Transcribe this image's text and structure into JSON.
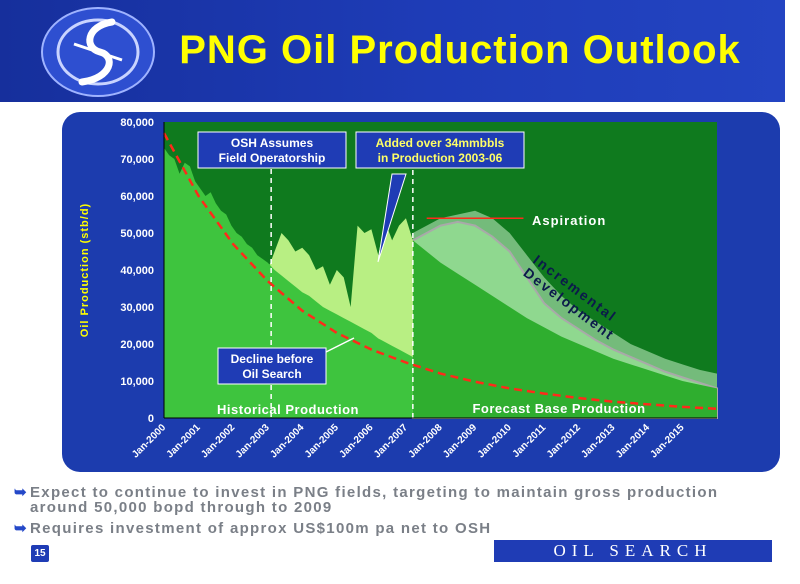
{
  "slide": {
    "title": "PNG Oil Production Outlook",
    "page_number": "15",
    "brand": "OIL SEARCH LIMITED",
    "bullets": [
      "Expect to continue to invest in PNG fields, targeting to maintain gross production around 50,000 bopd through to 2009",
      "Requires investment of approx US$100m pa net to OSH"
    ]
  },
  "colors": {
    "header_blue": "#1e3cb7",
    "title_yellow": "#ffff00",
    "panel_blue": "#1c3cae",
    "plot_green": "#0f7a1e",
    "historical_fill": "#3ec43e",
    "added_fill": "#b8ef83",
    "forecast_fill": "#2fae2f",
    "incremental_fill": "#8fd88f",
    "aspiration_fill": "#c8f0c8",
    "decline_line": "#ff2a1a"
  },
  "chart_data": {
    "type": "area",
    "ylabel": "Oil Production (stb/d)",
    "xlabel": "",
    "ylim": [
      0,
      80000
    ],
    "xlim": [
      2000,
      2016
    ],
    "yticks": [
      "0",
      "10,000",
      "20,000",
      "30,000",
      "40,000",
      "50,000",
      "60,000",
      "70,000",
      "80,000"
    ],
    "xticks": [
      {
        "x": 2000,
        "label": "Jan-2000"
      },
      {
        "x": 2001,
        "label": "Jan-2001"
      },
      {
        "x": 2002,
        "label": "Jan-2002"
      },
      {
        "x": 2003,
        "label": "Jan-2003"
      },
      {
        "x": 2004,
        "label": "Jan-2004"
      },
      {
        "x": 2005,
        "label": "Jan-2005"
      },
      {
        "x": 2006,
        "label": "Jan-2006"
      },
      {
        "x": 2007,
        "label": "Jan-2007"
      },
      {
        "x": 2008,
        "label": "Jan-2008"
      },
      {
        "x": 2009,
        "label": "Jan-2009"
      },
      {
        "x": 2010,
        "label": "Jan-2010"
      },
      {
        "x": 2011,
        "label": "Jan-2011"
      },
      {
        "x": 2012,
        "label": "Jan-2012"
      },
      {
        "x": 2013,
        "label": "Jan-2013"
      },
      {
        "x": 2014,
        "label": "Jan-2014"
      },
      {
        "x": 2015,
        "label": "Jan-2015"
      }
    ],
    "series": [
      {
        "name": "Historical Production",
        "x": [
          2000.0,
          2000.15,
          2000.3,
          2000.45,
          2000.6,
          2000.75,
          2000.9,
          2001.05,
          2001.2,
          2001.35,
          2001.5,
          2001.65,
          2001.8,
          2001.95,
          2002.1,
          2002.25,
          2002.4,
          2002.55,
          2002.7,
          2002.85,
          2003.0,
          2003.2,
          2003.4,
          2003.6,
          2003.8,
          2004.0,
          2004.2,
          2004.4,
          2004.6,
          2004.8,
          2005.0,
          2005.2,
          2005.4,
          2005.6,
          2005.8,
          2006.0,
          2006.2,
          2006.4,
          2006.6,
          2006.8,
          2007.0,
          2007.2
        ],
        "y": [
          73000,
          71000,
          70000,
          66000,
          69000,
          68000,
          64000,
          62000,
          60000,
          61000,
          58000,
          56000,
          55000,
          52000,
          50000,
          49000,
          47000,
          46000,
          44000,
          43000,
          42000,
          40000,
          38500,
          37000,
          35500,
          34000,
          33000,
          31500,
          30000,
          29000,
          28000,
          27000,
          26000,
          25000,
          24000,
          23000,
          21500,
          20500,
          19500,
          18500,
          17500,
          16500
        ]
      },
      {
        "name": "Added over 34mmbbls in Production 2003-06",
        "x": [
          2003.0,
          2003.2,
          2003.4,
          2003.6,
          2003.8,
          2004.0,
          2004.2,
          2004.4,
          2004.6,
          2004.8,
          2005.0,
          2005.2,
          2005.4,
          2005.6,
          2005.8,
          2006.0,
          2006.2,
          2006.4,
          2006.6,
          2006.8,
          2007.0,
          2007.2
        ],
        "y": [
          40000,
          45000,
          50000,
          48000,
          45000,
          46000,
          44000,
          40000,
          41000,
          36000,
          40000,
          38000,
          30000,
          52000,
          50000,
          51000,
          44000,
          53000,
          48000,
          52000,
          54000,
          48000
        ]
      },
      {
        "name": "Forecast Base Production",
        "x": [
          2007.2,
          2007.6,
          2008.0,
          2008.5,
          2009.0,
          2009.5,
          2010.0,
          2010.5,
          2011.0,
          2011.5,
          2012.0,
          2012.5,
          2013.0,
          2013.5,
          2014.0,
          2014.5,
          2015.0,
          2015.5,
          2016.0
        ],
        "y": [
          48000,
          45000,
          42000,
          39000,
          36000,
          33000,
          30000,
          27000,
          24500,
          22000,
          20000,
          18000,
          16000,
          14500,
          13000,
          11500,
          10000,
          9000,
          8000
        ]
      },
      {
        "name": "Incremental Development",
        "x": [
          2007.2,
          2007.6,
          2008.0,
          2008.5,
          2009.0,
          2009.5,
          2010.0,
          2010.5,
          2011.0,
          2011.5,
          2012.0,
          2012.5,
          2013.0,
          2013.5,
          2014.0,
          2014.5,
          2015.0,
          2015.5,
          2016.0
        ],
        "y": [
          48000,
          50000,
          52000,
          53000,
          52000,
          49000,
          45000,
          38000,
          31000,
          27000,
          24000,
          21000,
          18500,
          16500,
          14500,
          12500,
          11000,
          9500,
          8000
        ]
      },
      {
        "name": "Aspiration",
        "x": [
          2007.2,
          2007.6,
          2008.0,
          2008.5,
          2009.0,
          2009.5,
          2010.0,
          2010.5,
          2011.0,
          2011.5,
          2012.0,
          2012.5,
          2013.0,
          2013.5,
          2014.0,
          2014.5,
          2015.0,
          2015.5,
          2016.0
        ],
        "y": [
          50000,
          52000,
          54000,
          55000,
          56000,
          54000,
          50000,
          44000,
          38000,
          33000,
          29000,
          26000,
          23000,
          20000,
          18000,
          16000,
          14500,
          13000,
          12000
        ]
      },
      {
        "name": "Decline before Oil Search",
        "x": [
          2000.0,
          2001.0,
          2002.0,
          2003.0,
          2004.0,
          2005.0,
          2006.0,
          2007.0,
          2008.0,
          2009.0,
          2010.0,
          2011.0,
          2012.0,
          2013.0,
          2014.0,
          2015.0,
          2016.0
        ],
        "y": [
          77000,
          60000,
          47000,
          37000,
          29000,
          23000,
          18500,
          15000,
          12000,
          9800,
          8000,
          6600,
          5400,
          4400,
          3700,
          3000,
          2500
        ]
      }
    ],
    "vertical_markers": [
      {
        "x": 2003.1,
        "label": "OSH Assumes Field Operatorship"
      },
      {
        "x": 2007.2,
        "label": ""
      }
    ],
    "annotations": {
      "osh_assumes": [
        "OSH Assumes",
        "Field Operatorship"
      ],
      "added": [
        "Added over 34mmbbls",
        "in Production 2003-06"
      ],
      "decline": [
        "Decline before",
        "Oil Search"
      ],
      "aspiration": "Aspiration",
      "incremental": [
        "Incremental",
        "Development"
      ],
      "historical": "Historical Production",
      "forecast": "Forecast Base Production"
    },
    "grid": false
  }
}
